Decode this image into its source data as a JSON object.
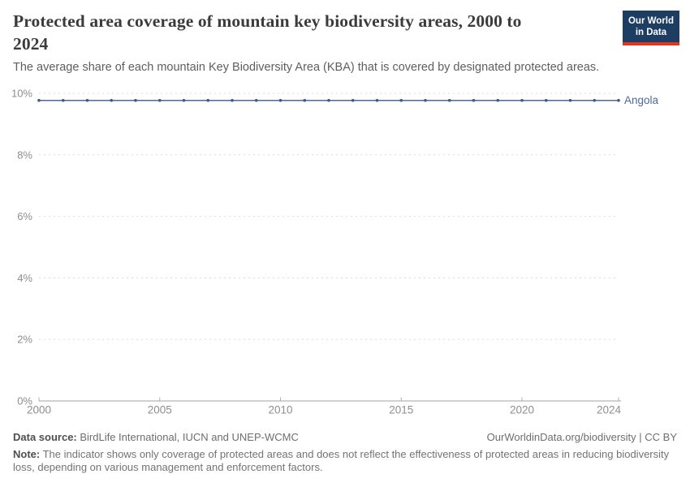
{
  "header": {
    "title_line1": "Protected area coverage of mountain key biodiversity areas, 2000 to",
    "title_line2": "2024",
    "subtitle": "The average share of each mountain Key Biodiversity Area (KBA) that is covered by designated protected areas.",
    "logo": {
      "line1": "Our World",
      "line2": "in Data"
    }
  },
  "chart_data": {
    "type": "line",
    "title": "Protected area coverage of mountain key biodiversity areas, 2000 to 2024",
    "x": [
      2000,
      2001,
      2002,
      2003,
      2004,
      2005,
      2006,
      2007,
      2008,
      2009,
      2010,
      2011,
      2012,
      2013,
      2014,
      2015,
      2016,
      2017,
      2018,
      2019,
      2020,
      2021,
      2022,
      2023,
      2024
    ],
    "series": [
      {
        "name": "Angola",
        "color": "#4C6A9C",
        "marker_color": "#3a5a8c",
        "values": [
          9.77,
          9.77,
          9.77,
          9.77,
          9.77,
          9.77,
          9.77,
          9.77,
          9.77,
          9.77,
          9.77,
          9.77,
          9.77,
          9.77,
          9.77,
          9.77,
          9.77,
          9.77,
          9.77,
          9.77,
          9.77,
          9.77,
          9.77,
          9.77,
          9.77
        ]
      }
    ],
    "xlabel": "",
    "ylabel": "",
    "xlim": [
      2000,
      2024
    ],
    "ylim": [
      0,
      10
    ],
    "x_ticks": [
      2000,
      2005,
      2010,
      2015,
      2020,
      2024
    ],
    "y_ticks": [
      0,
      2,
      4,
      6,
      8,
      10
    ],
    "y_tick_suffix": "%",
    "grid": "horizontal-dashed",
    "legend_position": "end-of-line-label"
  },
  "chart_style": {
    "grid_color": "#dcdcdc",
    "axis_color": "#a3a3a3",
    "tick_color": "#b0b0b0",
    "tick_label_color": "#8e8e8e"
  },
  "footer": {
    "source_label": "Data source:",
    "source_text": " BirdLife International, IUCN and UNEP-WCMC",
    "attribution": "OurWorldinData.org/biodiversity | CC BY",
    "note_label": "Note:",
    "note_text": " The indicator shows only coverage of protected areas and does not reflect the effectiveness of protected areas in reducing biodiversity loss, depending on various management and enforcement factors."
  }
}
